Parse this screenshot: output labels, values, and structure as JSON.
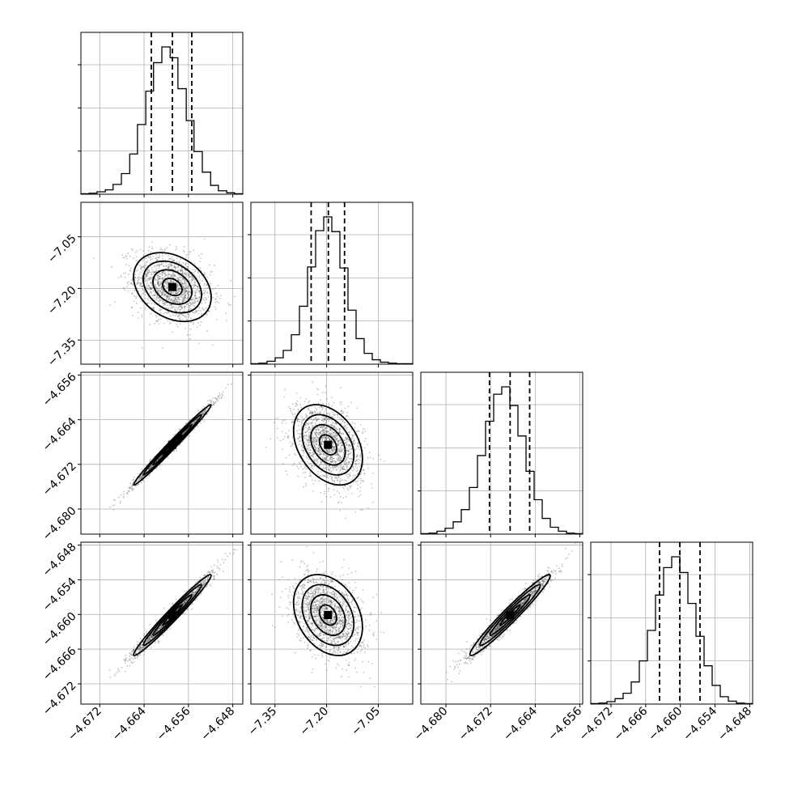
{
  "chart_data": {
    "type": "corner",
    "grid": true,
    "parameters": [
      {
        "range": [
          -4.6754,
          -4.6462
        ],
        "ticks": [
          "−4.672",
          "−4.664",
          "−4.656",
          "−4.648"
        ],
        "tick_values": [
          -4.672,
          -4.664,
          -4.656,
          -4.648
        ],
        "quantiles": [
          -4.6627,
          -4.6589,
          -4.6554
        ],
        "mean": -4.6589,
        "sd": 0.0035
      },
      {
        "range": [
          -7.42,
          -6.95
        ],
        "ticks": [
          "−7.35",
          "−7.20",
          "−7.05"
        ],
        "tick_values": [
          -7.35,
          -7.2,
          -7.05
        ],
        "quantiles": [
          -7.245,
          -7.195,
          -7.148
        ],
        "mean": -7.196,
        "sd": 0.05
      },
      {
        "range": [
          -4.6845,
          -4.6555
        ],
        "ticks": [
          "−4.680",
          "−4.672",
          "−4.664",
          "−4.656"
        ],
        "tick_values": [
          -4.68,
          -4.672,
          -4.664,
          -4.656
        ],
        "quantiles": [
          -4.6722,
          -4.6685,
          -4.665
        ],
        "mean": -4.6685,
        "sd": 0.0036
      },
      {
        "range": [
          -4.6755,
          -4.6475
        ],
        "ticks": [
          "−4.672",
          "−4.666",
          "−4.660",
          "−4.654",
          "−4.648"
        ],
        "tick_values": [
          -4.672,
          -4.666,
          -4.66,
          -4.654,
          -4.648
        ],
        "quantiles": [
          -4.6636,
          -4.6601,
          -4.6566
        ],
        "mean": -4.6601,
        "sd": 0.0035
      }
    ],
    "histograms": [
      {
        "param": 0,
        "bins": [
          -4.6754,
          -4.6739,
          -4.6725,
          -4.671,
          -4.6696,
          -4.6681,
          -4.6666,
          -4.6652,
          -4.6637,
          -4.6623,
          -4.6608,
          -4.6593,
          -4.6579,
          -4.6564,
          -4.655,
          -4.6535,
          -4.652,
          -4.6506,
          -4.6491,
          -4.6477,
          -4.6462
        ],
        "counts": [
          1,
          2,
          5,
          9,
          20,
          42,
          82,
          142,
          210,
          268,
          300,
          278,
          215,
          150,
          87,
          45,
          18,
          7,
          3,
          1
        ]
      },
      {
        "param": 1,
        "bins": [
          -7.42,
          -7.3965,
          -7.373,
          -7.3495,
          -7.326,
          -7.3025,
          -7.279,
          -7.2555,
          -7.232,
          -7.2085,
          -7.185,
          -7.1615,
          -7.138,
          -7.1145,
          -7.091,
          -7.0675,
          -7.044,
          -7.0205,
          -6.997,
          -6.9735,
          -6.95
        ],
        "counts": [
          1,
          2,
          6,
          13,
          28,
          60,
          118,
          198,
          272,
          300,
          270,
          196,
          110,
          52,
          22,
          9,
          4,
          2,
          1,
          1
        ]
      },
      {
        "param": 2,
        "bins": [
          -4.6845,
          -4.68305,
          -4.6816,
          -4.68015,
          -4.6787,
          -4.67725,
          -4.6758,
          -4.67435,
          -4.6729,
          -4.67145,
          -4.67,
          -4.66855,
          -4.6671,
          -4.66565,
          -4.6642,
          -4.66275,
          -4.6613,
          -4.65985,
          -4.6584,
          -4.65695,
          -4.6555
        ],
        "counts": [
          1,
          2,
          6,
          12,
          25,
          50,
          95,
          160,
          230,
          285,
          300,
          262,
          200,
          128,
          70,
          32,
          14,
          6,
          2,
          1
        ]
      },
      {
        "param": 3,
        "bins": [
          -4.6755,
          -4.6741,
          -4.6727,
          -4.6713,
          -4.6699,
          -4.6685,
          -4.6671,
          -4.6657,
          -4.6643,
          -4.6629,
          -4.6615,
          -4.6601,
          -4.6587,
          -4.6573,
          -4.6559,
          -4.6545,
          -4.6531,
          -4.6517,
          -4.6503,
          -4.6489,
          -4.6475
        ],
        "counts": [
          1,
          2,
          5,
          11,
          22,
          45,
          88,
          150,
          222,
          278,
          300,
          268,
          205,
          138,
          78,
          38,
          15,
          6,
          2,
          1
        ]
      }
    ],
    "pairs": [
      {
        "row": 1,
        "col": 0,
        "correlation": -0.3
      },
      {
        "row": 2,
        "col": 0,
        "correlation": 0.99
      },
      {
        "row": 2,
        "col": 1,
        "correlation": -0.35
      },
      {
        "row": 3,
        "col": 0,
        "correlation": 0.98
      },
      {
        "row": 3,
        "col": 1,
        "correlation": -0.3
      },
      {
        "row": 3,
        "col": 2,
        "correlation": 0.97
      }
    ]
  }
}
